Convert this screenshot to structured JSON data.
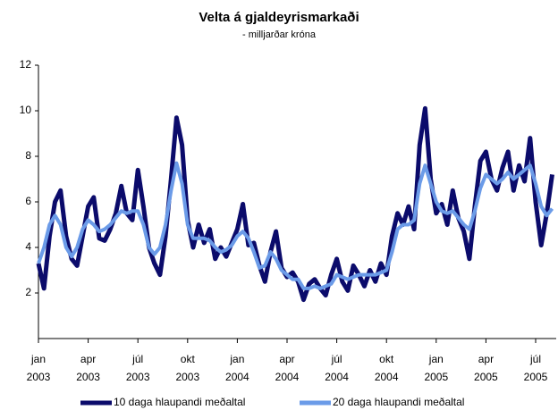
{
  "chart_data": {
    "type": "line",
    "title": "Velta á gjaldeyrismarkaði",
    "subtitle": "- milljarðar króna",
    "categories": [
      "jan 2003",
      null,
      null,
      null,
      null,
      null,
      null,
      null,
      null,
      "apr 2003",
      null,
      null,
      null,
      null,
      null,
      null,
      null,
      null,
      "júl 2003",
      null,
      null,
      null,
      null,
      null,
      null,
      null,
      null,
      "okt 2003",
      null,
      null,
      null,
      null,
      null,
      null,
      null,
      null,
      "jan 2004",
      null,
      null,
      null,
      null,
      null,
      null,
      null,
      null,
      "apr 2004",
      null,
      null,
      null,
      null,
      null,
      null,
      null,
      null,
      "júl 2004",
      null,
      null,
      null,
      null,
      null,
      null,
      null,
      null,
      "okt 2004",
      null,
      null,
      null,
      null,
      null,
      null,
      null,
      null,
      "jan 2005",
      null,
      null,
      null,
      null,
      null,
      null,
      null,
      null,
      "apr 2005",
      null,
      null,
      null,
      null,
      null,
      null,
      null,
      null,
      "júl 2005",
      null,
      null,
      null
    ],
    "series": [
      {
        "name": "10 daga hlaupandi meðaltal",
        "color": "#0b0b6b",
        "values": [
          3.3,
          2.2,
          4.5,
          6.0,
          6.5,
          4.5,
          3.5,
          3.2,
          4.5,
          5.8,
          6.2,
          4.4,
          4.3,
          4.8,
          5.5,
          6.7,
          5.5,
          5.2,
          7.4,
          5.8,
          4.0,
          3.3,
          2.8,
          4.5,
          7.0,
          9.7,
          8.5,
          5.2,
          4.0,
          5.0,
          4.2,
          4.8,
          3.5,
          4.0,
          3.6,
          4.2,
          4.8,
          5.9,
          4.1,
          4.2,
          3.2,
          2.5,
          3.8,
          4.7,
          3.1,
          2.7,
          2.9,
          2.5,
          1.7,
          2.4,
          2.6,
          2.2,
          1.9,
          2.8,
          3.5,
          2.5,
          2.1,
          3.2,
          2.8,
          2.3,
          3.0,
          2.5,
          3.3,
          2.8,
          4.5,
          5.5,
          5.0,
          5.8,
          4.8,
          8.5,
          10.1,
          7.0,
          5.5,
          5.9,
          5.0,
          6.5,
          5.3,
          4.7,
          3.5,
          5.8,
          7.8,
          8.2,
          7.0,
          6.5,
          7.5,
          8.2,
          6.5,
          7.6,
          6.9,
          8.8,
          6.0,
          4.1,
          5.5,
          7.2
        ]
      },
      {
        "name": "20 daga hlaupandi meðaltal",
        "color": "#6b9be8",
        "values": [
          3.3,
          4.0,
          5.0,
          5.4,
          5.0,
          4.0,
          3.6,
          4.0,
          4.8,
          5.2,
          5.0,
          4.7,
          4.8,
          5.0,
          5.3,
          5.6,
          5.5,
          5.6,
          5.6,
          5.0,
          4.0,
          3.7,
          4.0,
          5.0,
          6.5,
          7.7,
          6.8,
          5.0,
          4.4,
          4.4,
          4.4,
          4.3,
          4.0,
          3.8,
          3.9,
          4.1,
          4.5,
          4.7,
          4.4,
          3.8,
          3.1,
          3.2,
          3.8,
          3.5,
          3.0,
          2.8,
          2.6,
          2.6,
          2.2,
          2.2,
          2.3,
          2.2,
          2.3,
          2.4,
          2.8,
          2.7,
          2.6,
          2.7,
          2.8,
          2.8,
          2.8,
          2.8,
          2.9,
          3.0,
          3.8,
          4.8,
          5.0,
          5.0,
          5.2,
          6.8,
          7.6,
          6.8,
          6.0,
          5.6,
          5.5,
          5.6,
          5.3,
          5.0,
          4.8,
          5.6,
          6.6,
          7.2,
          7.0,
          6.8,
          7.0,
          7.3,
          7.0,
          7.2,
          7.4,
          7.6,
          6.8,
          5.8,
          5.4,
          5.7
        ]
      }
    ],
    "ylim": [
      0,
      12
    ],
    "yticks": [
      2,
      4,
      6,
      8,
      10,
      12
    ]
  }
}
